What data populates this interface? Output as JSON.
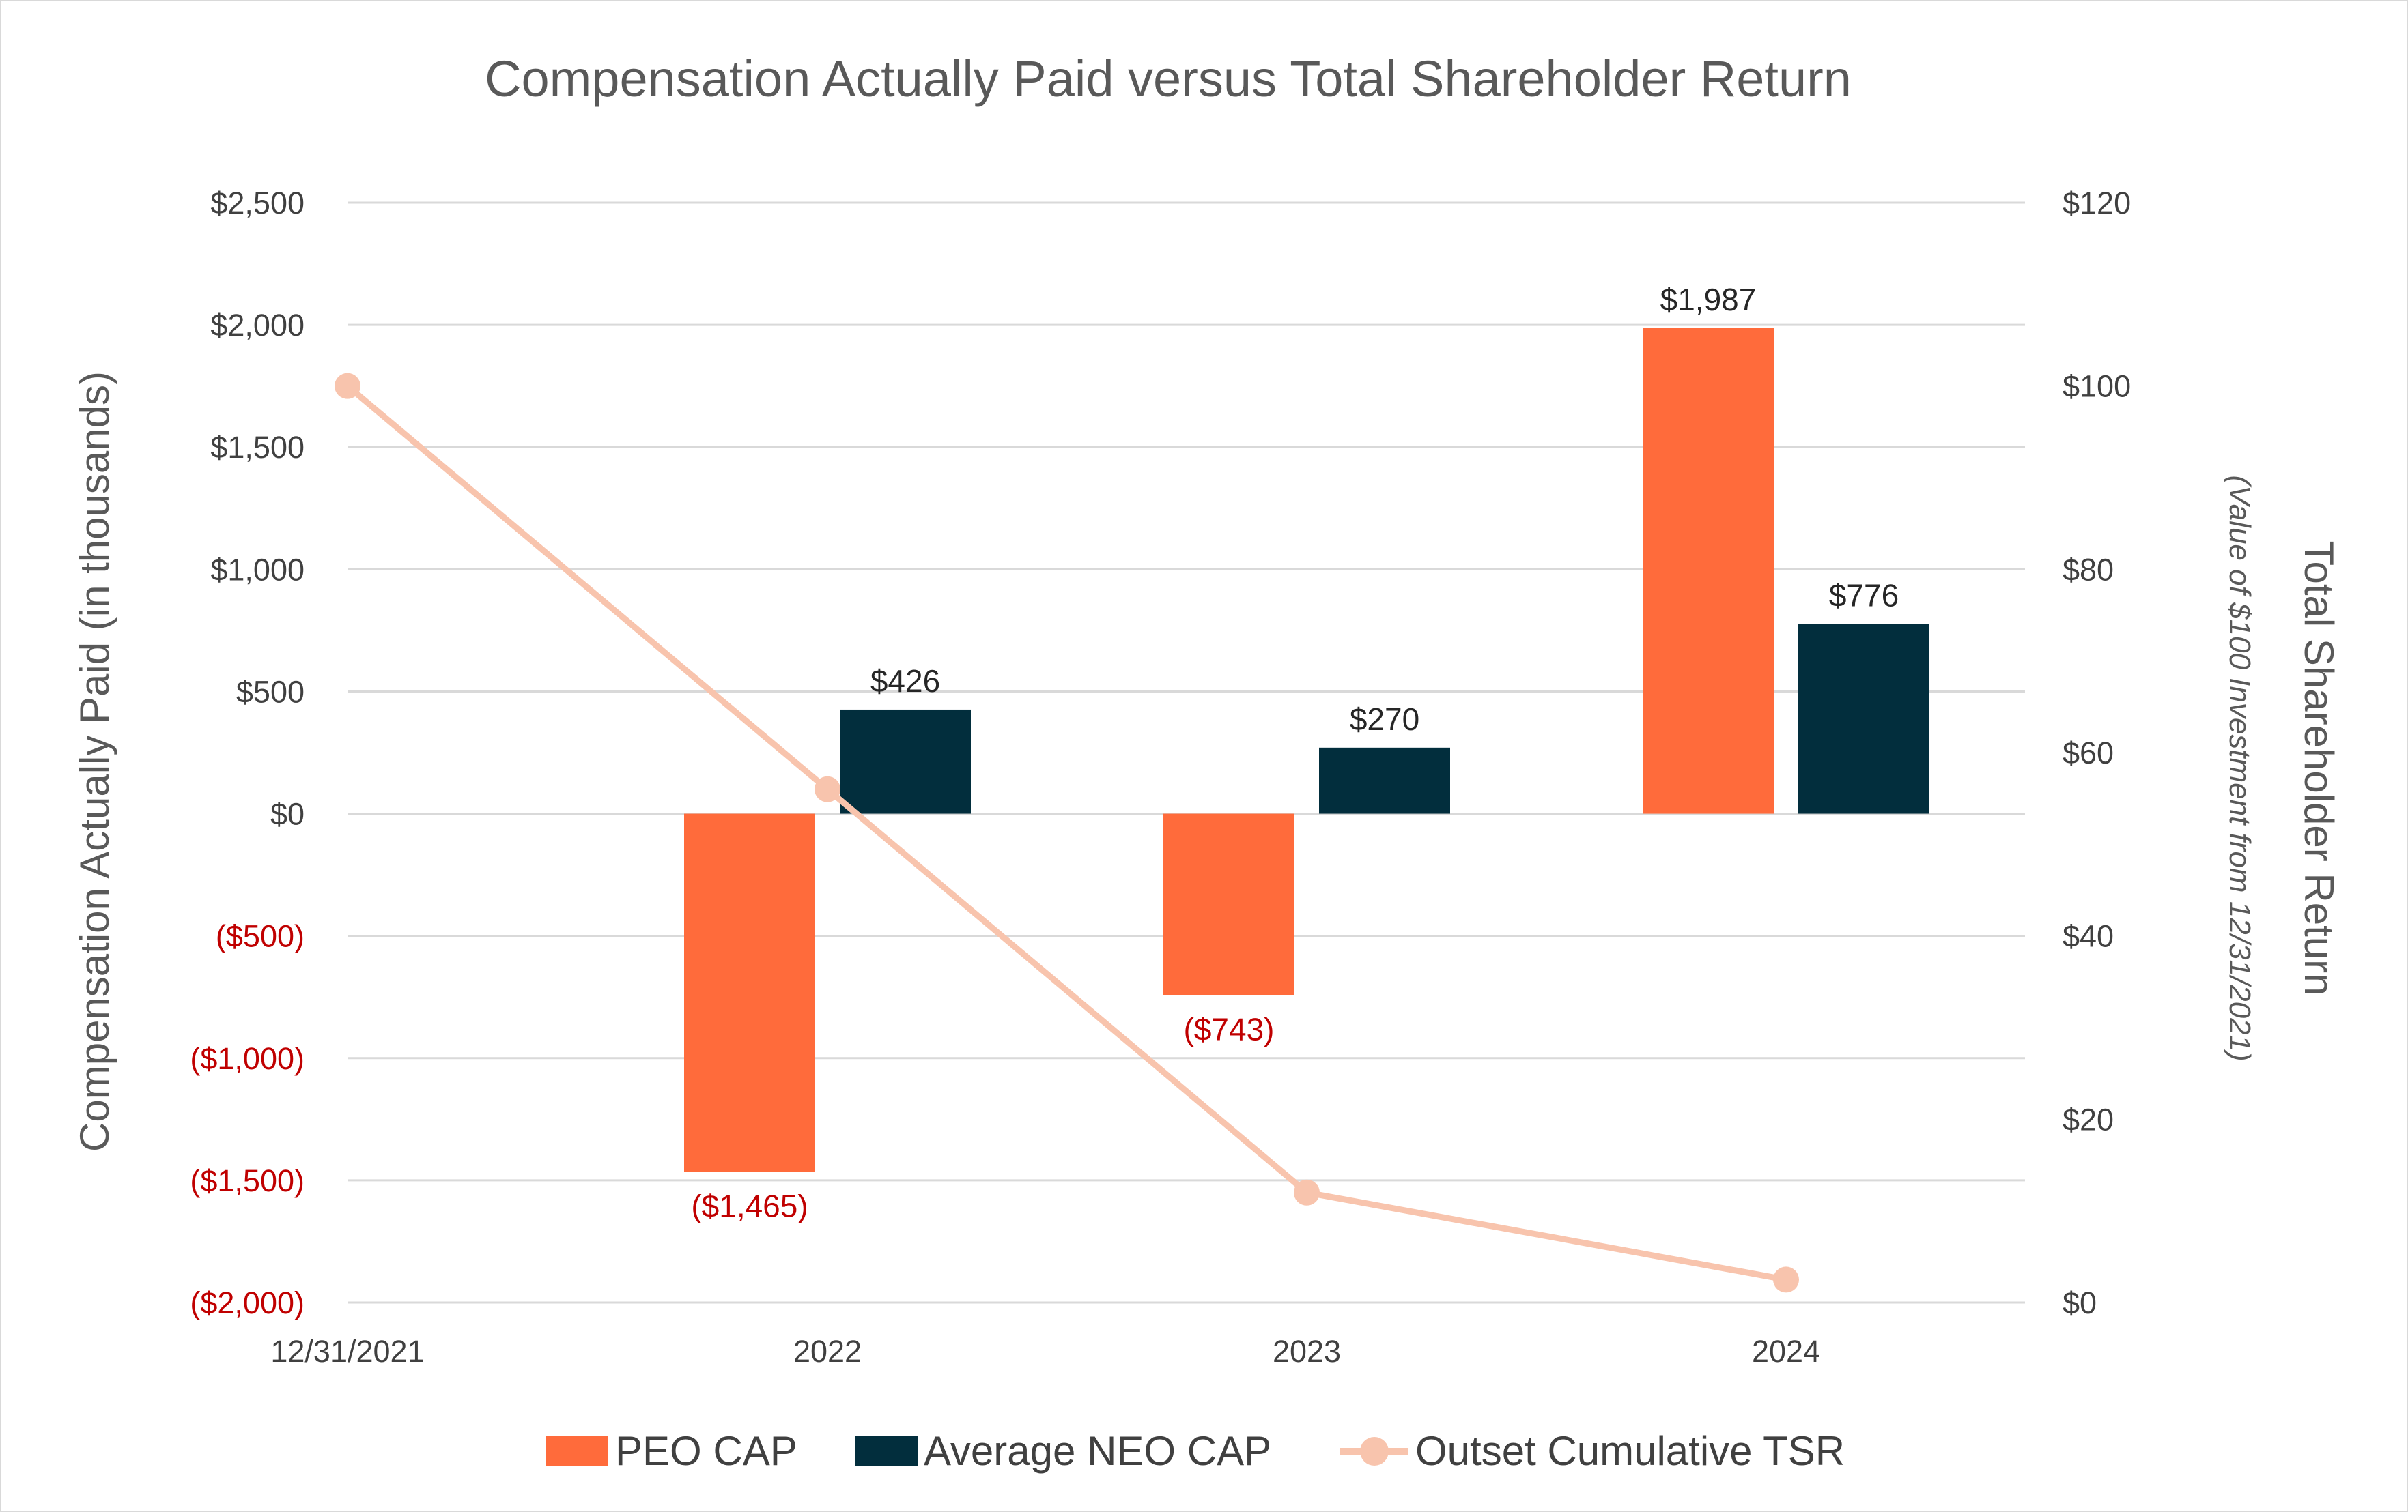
{
  "chart_data": {
    "type": "bar",
    "title": "Compensation Actually Paid versus Total Shareholder Return",
    "categories": [
      "12/31/2021",
      "2022",
      "2023",
      "2024"
    ],
    "left_axis": {
      "label": "Compensation Actually Paid (in thousands)",
      "range": [
        -2000,
        2500
      ],
      "ticks": [
        2500,
        2000,
        1500,
        1000,
        500,
        0,
        -500,
        -1000,
        -1500,
        -2000
      ],
      "tick_labels": [
        "$2,500",
        "$2,000",
        "$1,500",
        "$1,000",
        "$500",
        "$0",
        "($500)",
        "($1,000)",
        "($1,500)",
        "($2,000)"
      ],
      "negative_color": "#c00000",
      "positive_color": "#404040"
    },
    "right_axis": {
      "label": "Total Shareholder Return",
      "sublabel": "(Value of $100 Investment from 12/31/2021)",
      "range": [
        0,
        120
      ],
      "ticks": [
        120,
        100,
        80,
        60,
        40,
        20,
        0
      ],
      "tick_labels": [
        "$120",
        "$100",
        "$80",
        "$60",
        "$40",
        "$20",
        "$0"
      ]
    },
    "series": [
      {
        "name": "PEO CAP",
        "type": "bar",
        "axis": "left",
        "color": "#ff6b3b",
        "values": [
          null,
          -1465,
          -743,
          1987
        ],
        "labels": [
          null,
          "($1,465)",
          "($743)",
          "$1,987"
        ]
      },
      {
        "name": "Average NEO CAP",
        "type": "bar",
        "axis": "left",
        "color": "#022e3d",
        "values": [
          null,
          426,
          270,
          776
        ],
        "labels": [
          null,
          "$426",
          "$270",
          "$776"
        ]
      },
      {
        "name": "Outset Cumulative TSR",
        "type": "line",
        "axis": "right",
        "color": "#f8c4ad",
        "values": [
          100,
          56,
          12,
          2.5
        ]
      }
    ],
    "grid": true,
    "legend_position": "bottom"
  }
}
